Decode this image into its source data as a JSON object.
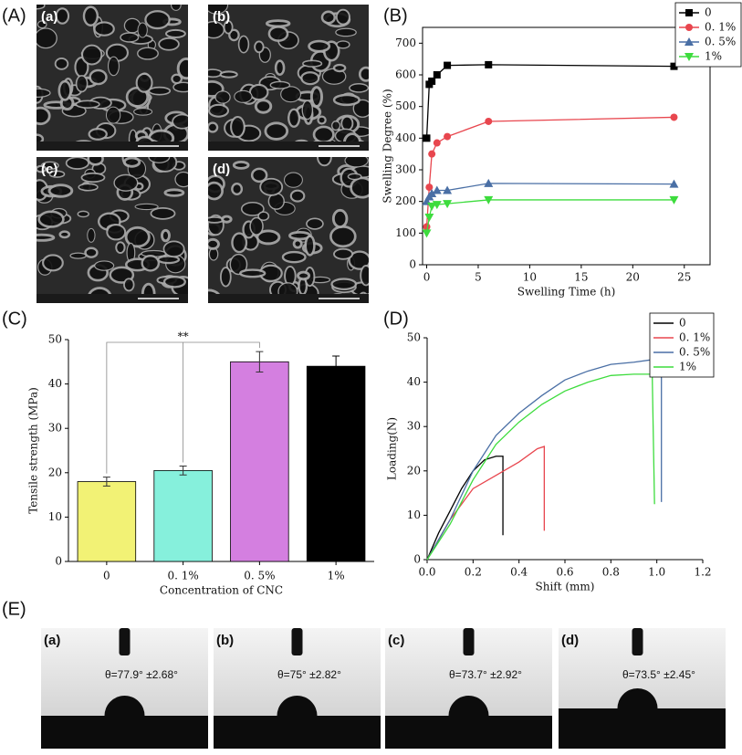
{
  "panel_labels": [
    "(A)",
    "(B)",
    "(C)",
    "(D)",
    "(E)"
  ],
  "sem_images": [
    "(a)",
    "(b)",
    "(c)",
    "(d)"
  ],
  "contact_angle": [
    {
      "label": "(a)",
      "text": "θ=77.9°  ±2.68°"
    },
    {
      "label": "(b)",
      "text": "θ=75°  ±2.82°"
    },
    {
      "label": "(c)",
      "text": "θ=73.7°  ±2.92°"
    },
    {
      "label": "(d)",
      "text": "θ=73.5°  ±2.45°"
    }
  ],
  "chart_data": [
    {
      "type": "line",
      "xlabel": "Swelling Time (h)",
      "ylabel": "Swelling Degree (%)",
      "frame": true,
      "legend": "upper right",
      "x": [
        0,
        0.25,
        0.5,
        1,
        2,
        6,
        24
      ],
      "series": [
        {
          "name": "0",
          "color": "#000000",
          "marker": "square",
          "values": [
            400,
            570,
            580,
            600,
            630,
            632,
            627
          ]
        },
        {
          "name": "0. 1%",
          "color": "#e8464e",
          "marker": "circle",
          "values": [
            120,
            245,
            350,
            385,
            405,
            453,
            466
          ]
        },
        {
          "name": "0. 5%",
          "color": "#4a6fa5",
          "marker": "triangle",
          "values": [
            200,
            215,
            225,
            235,
            235,
            257,
            255
          ]
        },
        {
          "name": "1%",
          "color": "#3ddc3d",
          "marker": "triangle-down",
          "values": [
            100,
            150,
            185,
            190,
            193,
            205,
            205
          ]
        }
      ],
      "xlim": [
        -0.4,
        27.5
      ],
      "xticks": [
        0,
        5,
        10,
        15,
        20,
        25
      ],
      "ylim": [
        0,
        750
      ],
      "yticks": [
        0,
        100,
        200,
        300,
        400,
        500,
        600,
        700
      ]
    },
    {
      "type": "bar",
      "xlabel": "Concentration of CNC",
      "ylabel": "Tensile strength (MPa)",
      "categories": [
        "0",
        "0. 1%",
        "0. 5%",
        "1%"
      ],
      "values": [
        18,
        20.5,
        45,
        44
      ],
      "errors": [
        1,
        1,
        2.3,
        2.3
      ],
      "colors": [
        "#f2f275",
        "#86f0dc",
        "#d47fe0",
        "#000000"
      ],
      "annotation": "**",
      "ylim": [
        0,
        50
      ],
      "yticks": [
        0,
        10,
        20,
        30,
        40,
        50
      ]
    },
    {
      "type": "line",
      "xlabel": "Shift (mm)",
      "ylabel": "Loading(N)",
      "legend": "upper right",
      "series": [
        {
          "name": "0",
          "color": "#000000",
          "x": [
            0,
            0.05,
            0.1,
            0.15,
            0.2,
            0.25,
            0.3,
            0.33,
            0.33
          ],
          "values": [
            0,
            6,
            11,
            16,
            20,
            22.5,
            23.3,
            23.3,
            5.5
          ]
        },
        {
          "name": "0. 1%",
          "color": "#e8464e",
          "x": [
            0,
            0.1,
            0.2,
            0.3,
            0.4,
            0.48,
            0.51,
            0.51
          ],
          "values": [
            0,
            9,
            16,
            19,
            22,
            25,
            25.5,
            6.5
          ]
        },
        {
          "name": "0. 5%",
          "color": "#4a6fa5",
          "x": [
            0,
            0.1,
            0.2,
            0.3,
            0.4,
            0.5,
            0.6,
            0.7,
            0.8,
            0.9,
            0.97,
            1.0,
            1.02,
            1.02
          ],
          "values": [
            0,
            9,
            20,
            28,
            33,
            37,
            40.5,
            42.5,
            44,
            44.5,
            45,
            44.5,
            41,
            13
          ]
        },
        {
          "name": "1%",
          "color": "#3ddc3d",
          "x": [
            0,
            0.1,
            0.2,
            0.3,
            0.4,
            0.5,
            0.6,
            0.7,
            0.8,
            0.9,
            0.98,
            0.99
          ],
          "values": [
            0,
            8,
            18,
            26,
            31,
            35,
            38,
            40,
            41.5,
            41.8,
            41.8,
            12.5
          ]
        }
      ],
      "xlim": [
        0,
        1.2
      ],
      "xticks": [
        {
          "value": 0,
          "label": "0.0"
        },
        {
          "value": 0.2,
          "label": "0.2"
        },
        {
          "value": 0.4,
          "label": "0.4"
        },
        {
          "value": 0.6,
          "label": "0.6"
        },
        {
          "value": 0.8,
          "label": "0.8"
        },
        {
          "value": 1,
          "label": "1.0"
        },
        {
          "value": 1.2,
          "label": "1.2"
        }
      ],
      "ylim": [
        0,
        50
      ],
      "yticks": [
        0,
        10,
        20,
        30,
        40,
        50
      ]
    }
  ]
}
